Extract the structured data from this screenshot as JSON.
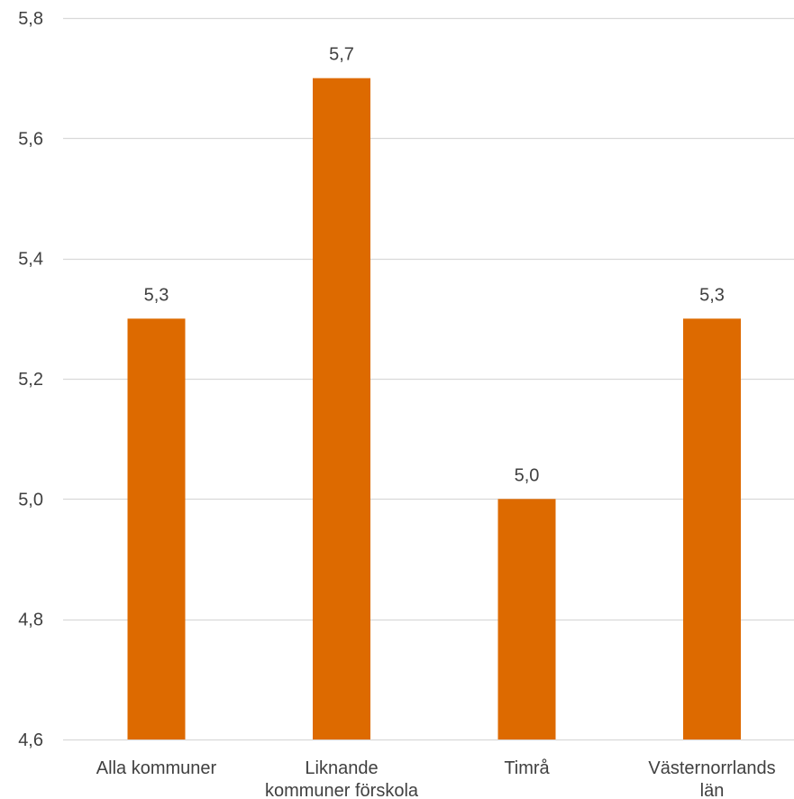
{
  "chart_data": {
    "type": "bar",
    "categories": [
      [
        "Alla kommuner"
      ],
      [
        "Liknande",
        "kommuner förskola"
      ],
      [
        "Timrå"
      ],
      [
        "Västernorrlands",
        "län"
      ]
    ],
    "values": [
      5.3,
      5.7,
      5.0,
      5.3
    ],
    "data_labels": [
      "5,3",
      "5,7",
      "5,0",
      "5,3"
    ],
    "y_ticks": [
      "4,6",
      "4,8",
      "5,0",
      "5,2",
      "5,4",
      "5,6",
      "5,8"
    ],
    "ylim": [
      4.6,
      5.8
    ],
    "grid": true,
    "bar_color": "#dd6a00",
    "grid_color": "#d9d9d9",
    "text_color": "#404040"
  }
}
